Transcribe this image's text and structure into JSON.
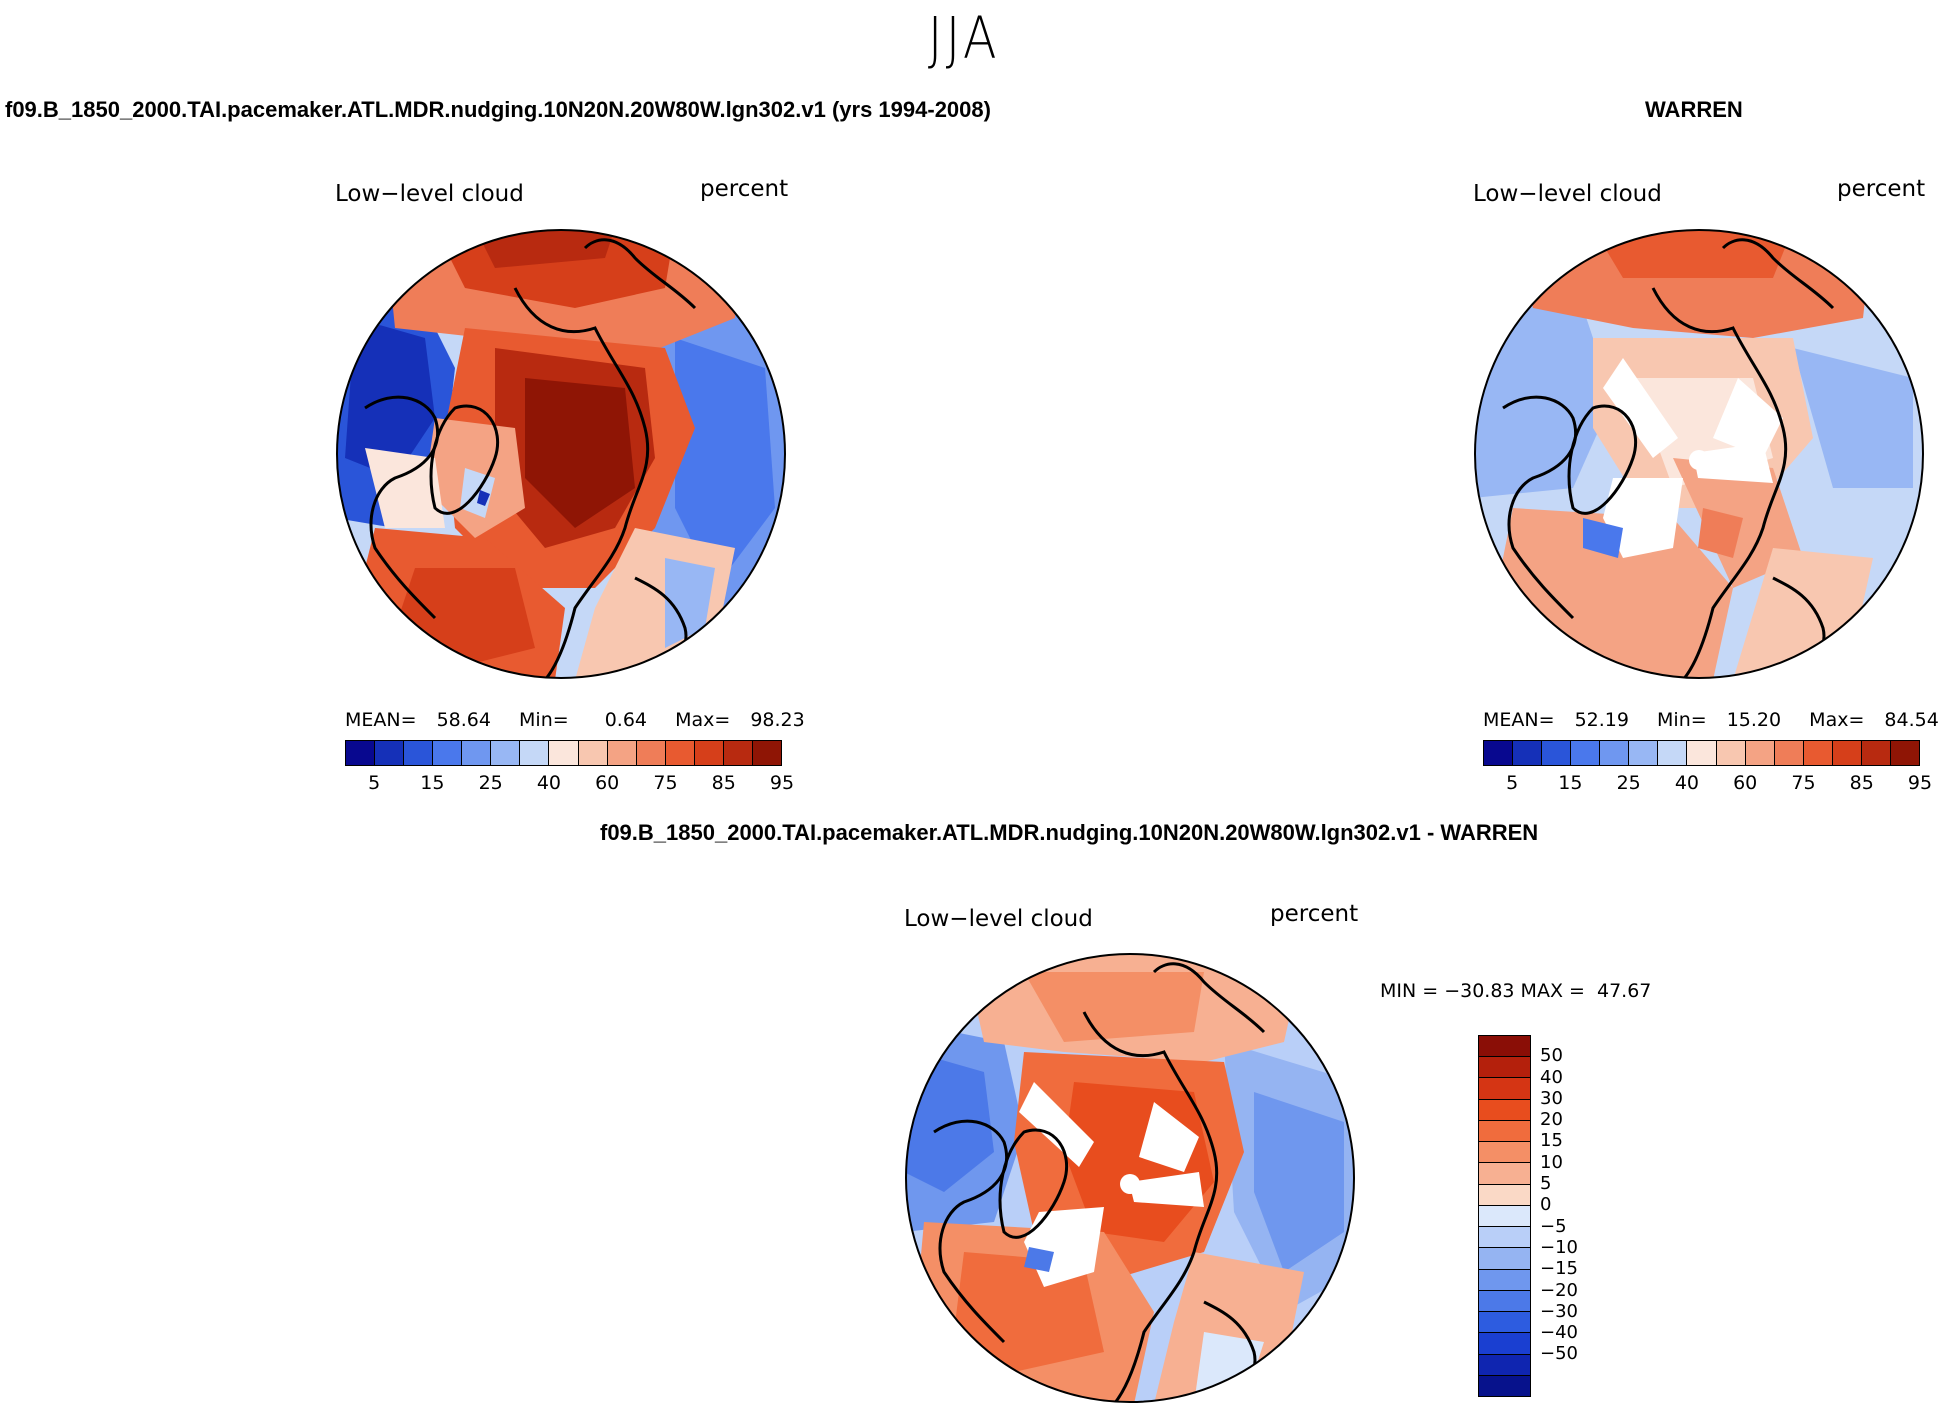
{
  "season": "JJA",
  "panels": {
    "model": {
      "title": "f09.B_1850_2000.TAI.pacemaker.ATL.MDR.nudging.10N20N.20W80W.lgn302.v1 (yrs 1994-2008)",
      "variable": "Low−level cloud",
      "units": "percent",
      "mean_label": "MEAN=",
      "mean": "58.64",
      "min_label": "Min=",
      "min": "0.64",
      "max_label": "Max=",
      "max": "98.23"
    },
    "obs": {
      "title": "WARREN",
      "variable": "Low−level cloud",
      "units": "percent",
      "mean_label": "MEAN=",
      "mean": "52.19",
      "min_label": "Min=",
      "min": "15.20",
      "max_label": "Max=",
      "max": "84.54"
    },
    "diff": {
      "title": "f09.B_1850_2000.TAI.pacemaker.ATL.MDR.nudging.10N20N.20W80W.lgn302.v1 - WARREN",
      "variable": "Low−level cloud",
      "units": "percent",
      "minmax": "MIN = −30.83 MAX =  47.67"
    }
  },
  "colorbar_abs": {
    "colors": [
      "#08088f",
      "#1530b8",
      "#2a55d9",
      "#4a78ec",
      "#6f97f0",
      "#98b7f4",
      "#c5d8f7",
      "#fbe6dc",
      "#f8c7b0",
      "#f4a384",
      "#ef7d58",
      "#e85a30",
      "#d63f1a",
      "#b82a10",
      "#8f1505"
    ],
    "tick_labels": [
      "5",
      "15",
      "25",
      "40",
      "60",
      "75",
      "85",
      "95"
    ]
  },
  "colorbar_diff": {
    "colors": [
      "#8a0e06",
      "#b4200c",
      "#d53514",
      "#e84d1e",
      "#f06c3d",
      "#f48f66",
      "#f7b092",
      "#fad9c6",
      "#dbe8fb",
      "#b9cff8",
      "#95b4f2",
      "#6f97ee",
      "#4c79e8",
      "#2d5ce0",
      "#1a3fd1",
      "#0f25b0",
      "#07128c"
    ],
    "tick_labels": [
      "50",
      "40",
      "30",
      "20",
      "15",
      "10",
      "5",
      "0",
      "−5",
      "−10",
      "−15",
      "−20",
      "−30",
      "−40",
      "−50"
    ]
  },
  "legend_icon": "none"
}
